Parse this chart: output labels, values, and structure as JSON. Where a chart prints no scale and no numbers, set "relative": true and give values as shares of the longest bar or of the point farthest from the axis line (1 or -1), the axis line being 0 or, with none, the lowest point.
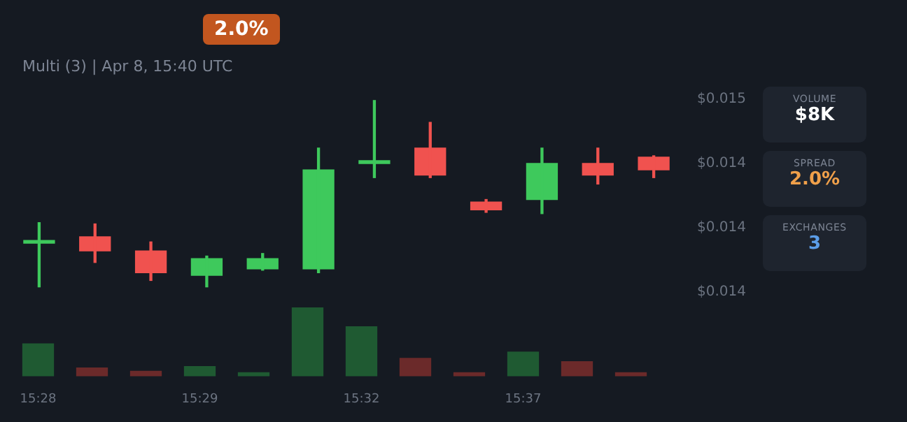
{
  "chart_data": [
    {
      "type": "candlestick",
      "subtitle": "Multi (3) | Apr 8, 15:40 UTC",
      "annotations": [
        "2.0%"
      ],
      "categories": [
        null,
        null,
        null,
        null,
        null,
        null,
        null,
        null,
        null,
        null,
        null,
        null
      ],
      "ohlc": [
        [
          0.01388,
          0.01404,
          0.01354,
          0.01389
        ],
        [
          0.01393,
          0.01403,
          0.01373,
          0.01382
        ],
        [
          0.01382,
          0.01389,
          0.01359,
          0.01365
        ],
        [
          0.01363,
          0.01378,
          0.01354,
          0.01376
        ],
        [
          0.01368,
          0.0138,
          0.01367,
          0.01376
        ],
        [
          0.01368,
          0.01462,
          0.01365,
          0.01445
        ],
        [
          0.0145,
          0.01499,
          0.01439,
          0.01451
        ],
        [
          0.01462,
          0.01482,
          0.01439,
          0.01441
        ],
        [
          0.0142,
          0.01422,
          0.01412,
          0.01414
        ],
        [
          0.01422,
          0.01462,
          0.01411,
          0.0145
        ],
        [
          0.0145,
          0.01462,
          0.01434,
          0.01441
        ],
        [
          0.01455,
          0.01456,
          0.01439,
          0.01445
        ]
      ],
      "ylim": [
        0.0135,
        0.015
      ],
      "yticks": [
        {
          "value": 0.015,
          "label": "$0.015"
        },
        {
          "value": 0.0145,
          "label": "$0.014"
        },
        {
          "value": 0.014,
          "label": "$0.014"
        },
        {
          "value": 0.0135,
          "label": "$0.014"
        }
      ],
      "tick_labels": "y",
      "grid": false,
      "legend": false
    },
    {
      "type": "bar",
      "relative": true,
      "tick_labels": "x",
      "categories": [
        "15:28",
        null,
        null,
        "15:29",
        null,
        null,
        "15:32",
        null,
        null,
        "15:37",
        null,
        null
      ],
      "values": [
        0.47,
        0.12,
        0.07,
        0.14,
        0.05,
        1,
        0.72,
        0.26,
        0.05,
        0.35,
        0.21,
        0.05
      ],
      "colors": [
        "#1f5a32",
        "#6b2a2a",
        "#6b2a2a",
        "#1f5a32",
        "#1f5a32",
        "#1f5a32",
        "#1f5a32",
        "#6b2a2a",
        "#6b2a2a",
        "#1f5a32",
        "#6b2a2a",
        "#6b2a2a"
      ]
    },
    {
      "type": "other",
      "annotations": [
        "VOLUME",
        "$8K",
        "SPREAD",
        "2.0%",
        "EXCHANGES",
        "3"
      ]
    }
  ]
}
